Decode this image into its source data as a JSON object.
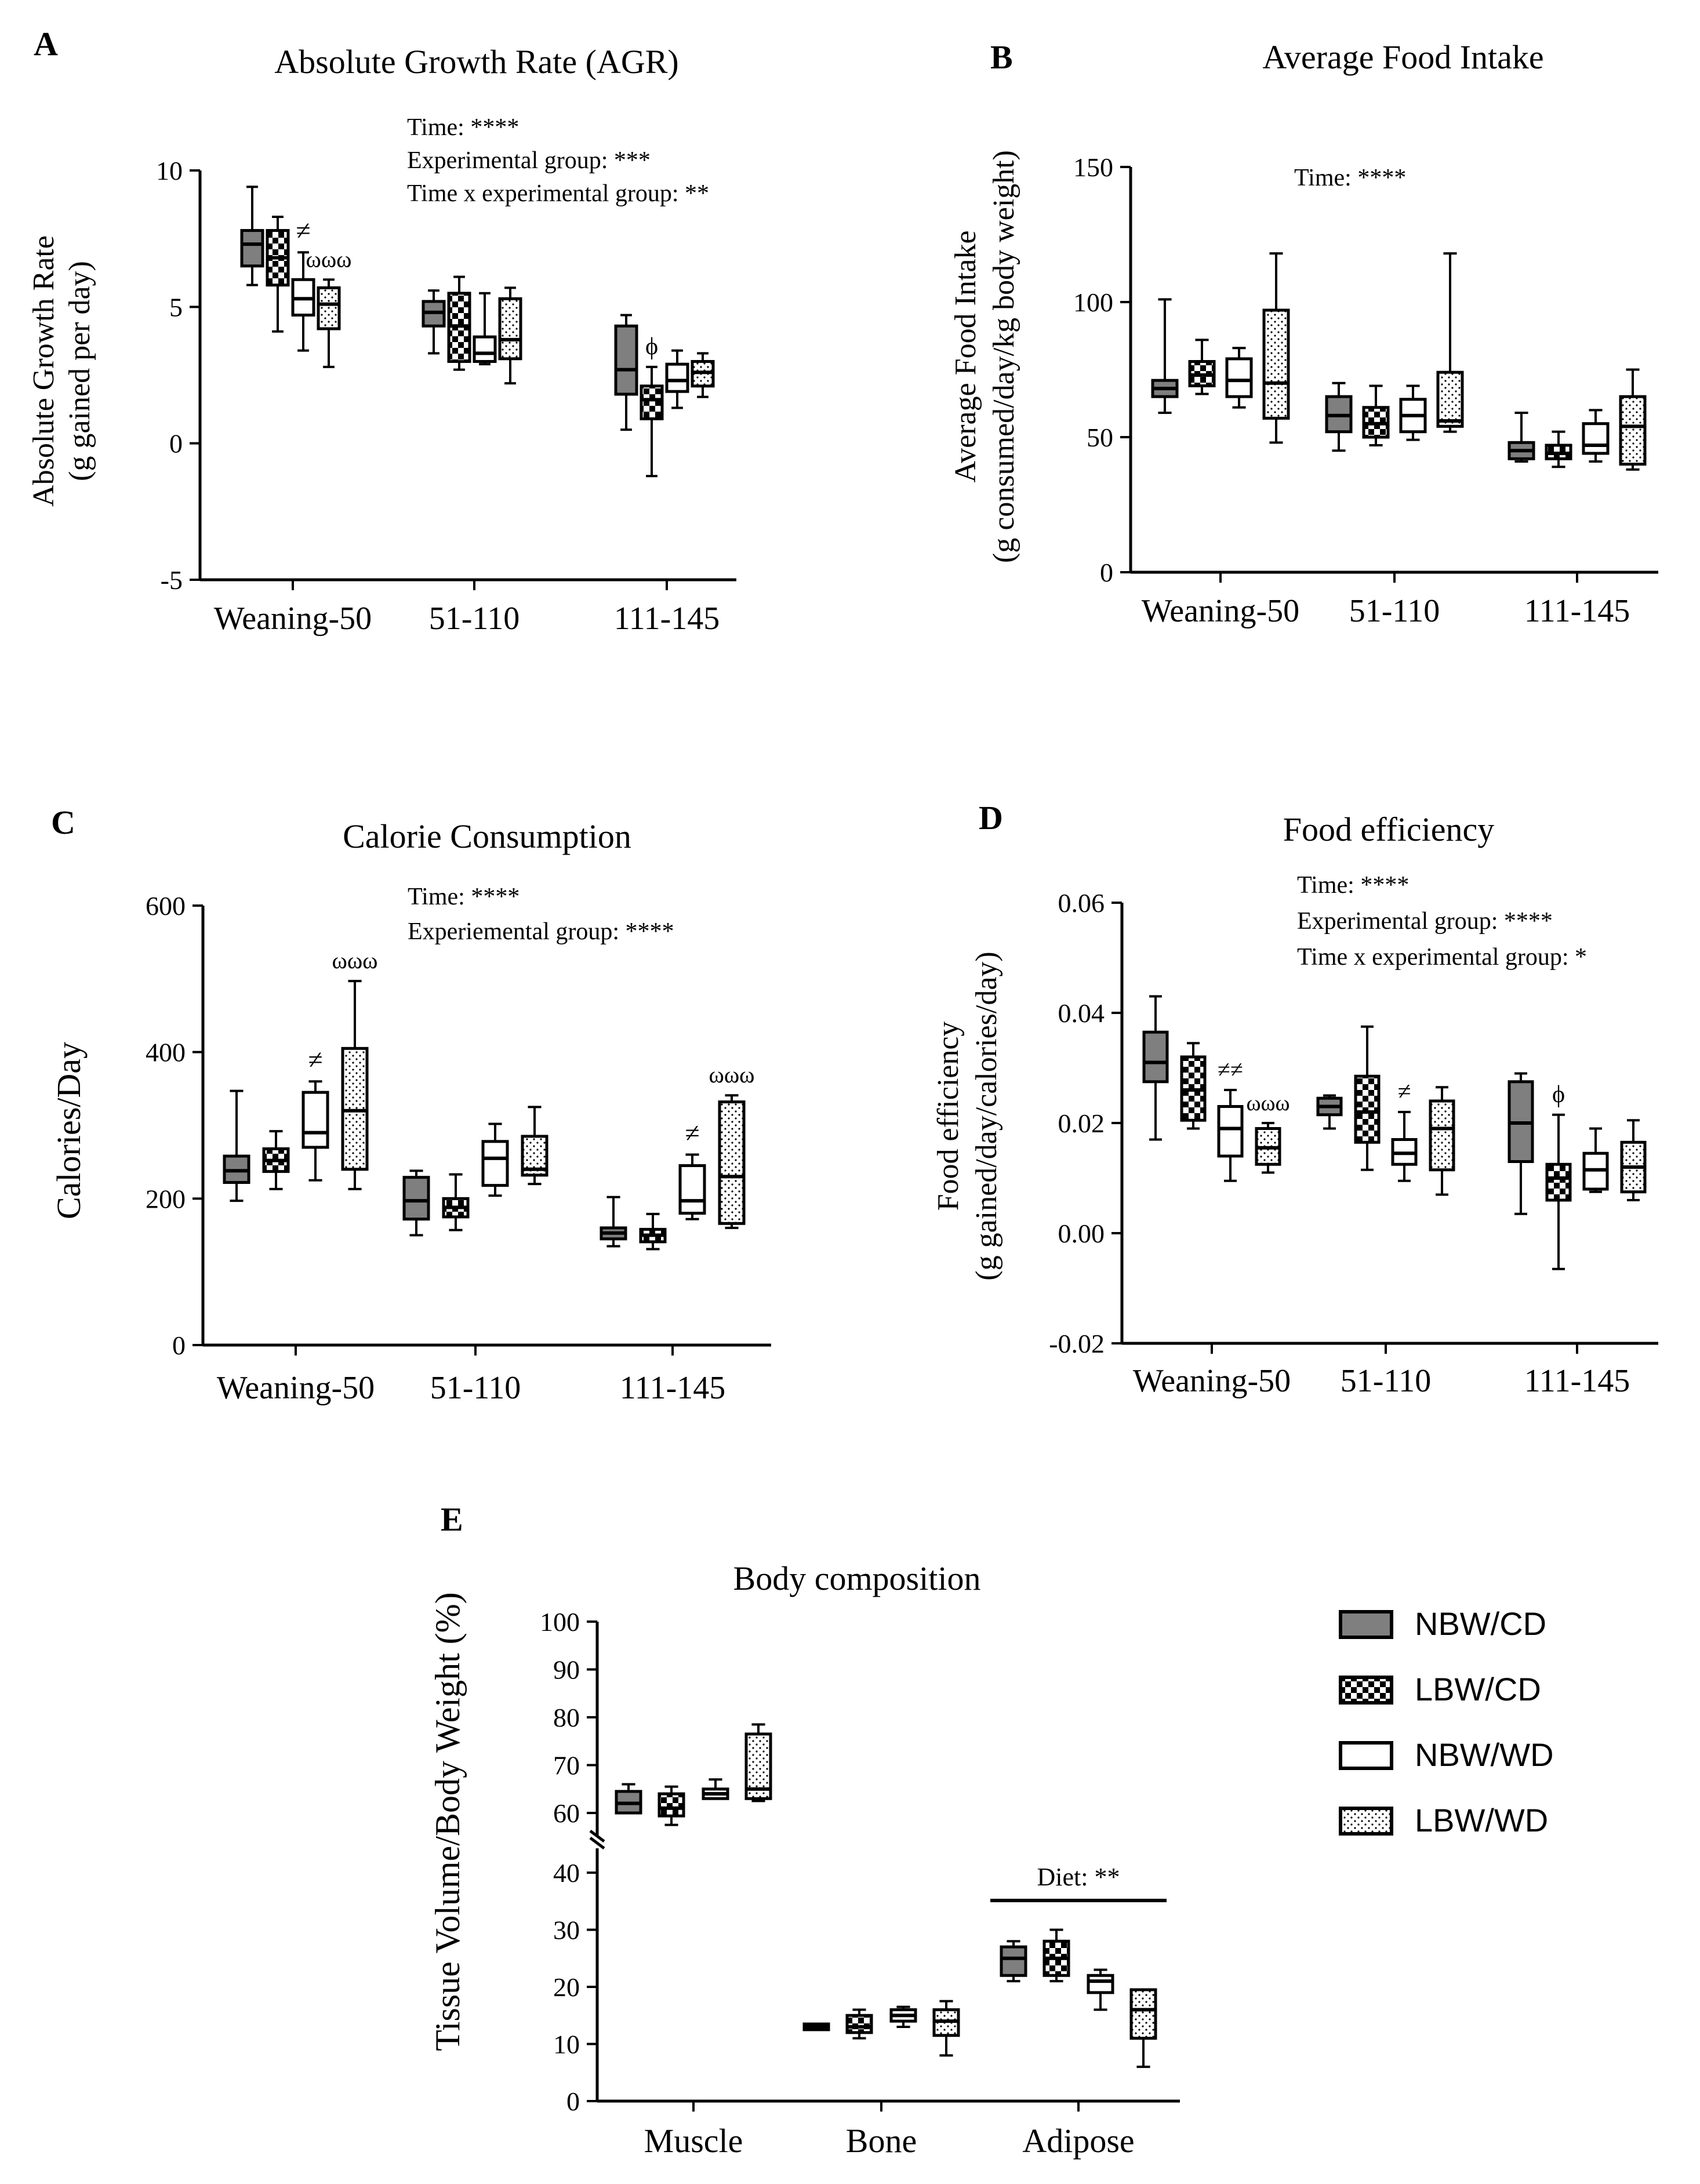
{
  "panels": [
    {
      "letter": "A",
      "title": "Absolute Growth Rate (AGR)",
      "ylabel_lines": [
        "Absolute Growth Rate",
        "(g gained per day)"
      ],
      "yticks": [
        "10",
        "5",
        "0",
        "-5"
      ],
      "categories": [
        "Weaning-50",
        "51-110",
        "111-145"
      ],
      "stats": [
        "Time: ****",
        "Experimental group: ***",
        "Time x experimental group: **"
      ],
      "annotations": [
        {
          "text": "≠",
          "category": 0,
          "group": 2
        },
        {
          "text": "ωωω",
          "category": 0,
          "group": 3
        },
        {
          "text": "ϕ",
          "category": 2,
          "group": 1
        }
      ]
    },
    {
      "letter": "B",
      "title": "Average Food Intake",
      "ylabel_lines": [
        "Average Food Intake",
        "(g consumed/day/kg body weight)"
      ],
      "yticks": [
        "150",
        "100",
        "50",
        "0"
      ],
      "categories": [
        "Weaning-50",
        "51-110",
        "111-145"
      ],
      "stats": [
        "Time: ****"
      ],
      "annotations": []
    },
    {
      "letter": "C",
      "title": "Calorie Consumption",
      "ylabel_lines": [
        "Calories/Day"
      ],
      "yticks": [
        "600",
        "400",
        "200",
        "0"
      ],
      "categories": [
        "Weaning-50",
        "51-110",
        "111-145"
      ],
      "stats": [
        "Time: ****",
        "Experiemental group: ****"
      ],
      "annotations": [
        {
          "text": "≠",
          "category": 0,
          "group": 2
        },
        {
          "text": "ωωω",
          "category": 0,
          "group": 3
        },
        {
          "text": "≠",
          "category": 2,
          "group": 2
        },
        {
          "text": "ωωω",
          "category": 2,
          "group": 3
        }
      ]
    },
    {
      "letter": "D",
      "title": "Food efficiency",
      "ylabel_lines": [
        "Food efficiency",
        "(g gained/day/calories/day)"
      ],
      "yticks": [
        "0.06",
        "0.04",
        "0.02",
        "0.00",
        "-0.02"
      ],
      "categories": [
        "Weaning-50",
        "51-110",
        "111-145"
      ],
      "stats": [
        "Time: ****",
        "Experimental group: ****",
        "Time x experimental group: *"
      ],
      "annotations": [
        {
          "text": "≠≠",
          "category": 0,
          "group": 2
        },
        {
          "text": "ωωω",
          "category": 0,
          "group": 3
        },
        {
          "text": "≠",
          "category": 1,
          "group": 2
        },
        {
          "text": "ϕ",
          "category": 2,
          "group": 1
        }
      ]
    },
    {
      "letter": "E",
      "title": "Body composition",
      "ylabel_lines": [
        "Tissue Volume/Body Weight (%)"
      ],
      "yticks": [
        "100",
        "90",
        "80",
        "70",
        "60",
        "40",
        "30",
        "20",
        "10",
        "0"
      ],
      "categories": [
        "Muscle",
        "Bone",
        "Adipose"
      ],
      "stats": [],
      "significance_bar": {
        "label": "Diet: **",
        "category": 2
      },
      "annotations": []
    }
  ],
  "legend": [
    {
      "label": "NBW/CD",
      "fill": "gray"
    },
    {
      "label": "LBW/CD",
      "fill": "checker"
    },
    {
      "label": "NBW/WD",
      "fill": "white"
    },
    {
      "label": "LBW/WD",
      "fill": "dots"
    }
  ],
  "colors": {
    "nbw_cd": "#7f7f7f",
    "lbw_cd": "#000000",
    "nbw_wd": "#ffffff",
    "lbw_wd": "#ffffff",
    "axis": "#000000"
  },
  "chart_data": [
    {
      "type": "box",
      "panel": "A",
      "title": "Absolute Growth Rate (AGR)",
      "ylabel": "Absolute Growth Rate (g gained per day)",
      "ylim": [
        -5,
        10
      ],
      "categories": [
        "Weaning-50",
        "51-110",
        "111-145"
      ],
      "series": [
        {
          "name": "NBW/CD",
          "boxes": [
            [
              5.8,
              6.5,
              7.3,
              7.8,
              9.4
            ],
            [
              3.3,
              4.3,
              4.8,
              5.2,
              5.6
            ],
            [
              0.5,
              1.8,
              2.7,
              4.3,
              4.7
            ]
          ]
        },
        {
          "name": "LBW/CD",
          "boxes": [
            [
              4.1,
              5.8,
              6.8,
              7.8,
              8.3
            ],
            [
              2.7,
              3.0,
              4.3,
              5.5,
              6.1
            ]
          ],
          "extra": true,
          "boxes_more": [
            [
              -1.2,
              0.9,
              1.6,
              2.1,
              2.8
            ]
          ]
        },
        {
          "name": "NBW/WD",
          "boxes": [
            [
              3.4,
              4.7,
              5.3,
              6.0,
              7.0
            ],
            [
              2.9,
              3.0,
              3.3,
              3.9,
              5.5
            ],
            [
              1.3,
              1.9,
              2.3,
              2.9,
              3.4
            ]
          ]
        },
        {
          "name": "LBW/WD",
          "boxes": [
            [
              2.8,
              4.2,
              5.1,
              5.7,
              6.0
            ],
            [
              2.2,
              3.1,
              3.8,
              5.3,
              5.7
            ],
            [
              1.7,
              2.1,
              2.6,
              3.0,
              3.3
            ]
          ]
        }
      ]
    },
    {
      "type": "box",
      "panel": "B",
      "title": "Average Food Intake",
      "ylabel": "Average Food Intake (g consumed/day/kg body weight)",
      "ylim": [
        0,
        150
      ],
      "categories": [
        "Weaning-50",
        "51-110",
        "111-145"
      ],
      "series": [
        {
          "name": "NBW/CD",
          "boxes": [
            [
              59,
              65,
              68,
              71,
              101
            ],
            [
              45,
              52,
              58,
              65,
              70
            ],
            [
              41,
              42,
              45,
              48,
              59
            ]
          ]
        },
        {
          "name": "LBW/CD",
          "boxes": [
            [
              66,
              69,
              73,
              78,
              86
            ],
            [
              47,
              50,
              55,
              61,
              69
            ],
            [
              39,
              42,
              44,
              47,
              52
            ]
          ]
        },
        {
          "name": "NBW/WD",
          "boxes": [
            [
              61,
              65,
              71,
              79,
              83
            ],
            [
              49,
              52,
              58,
              64,
              69
            ],
            [
              41,
              44,
              47,
              55,
              60
            ]
          ]
        },
        {
          "name": "LBW/WD",
          "boxes": [
            [
              48,
              57,
              70,
              97,
              118
            ],
            [
              52,
              54,
              56,
              74,
              118
            ],
            [
              38,
              40,
              54,
              65,
              75
            ]
          ]
        }
      ]
    },
    {
      "type": "box",
      "panel": "C",
      "title": "Calorie Consumption",
      "ylabel": "Calories/Day",
      "ylim": [
        0,
        600
      ],
      "categories": [
        "Weaning-50",
        "51-110",
        "111-145"
      ],
      "series": [
        {
          "name": "NBW/CD",
          "boxes": [
            [
              197,
              222,
              238,
              258,
              347
            ],
            [
              150,
              172,
              197,
              229,
              238
            ],
            [
              135,
              145,
              153,
              160,
              202
            ]
          ]
        },
        {
          "name": "LBW/CD",
          "boxes": [
            [
              213,
              237,
              252,
              268,
              292
            ],
            [
              157,
              175,
              188,
              200,
              233
            ],
            [
              131,
              141,
              150,
              158,
              179
            ]
          ]
        },
        {
          "name": "NBW/WD",
          "boxes": [
            [
              225,
              270,
              290,
              345,
              360
            ],
            [
              204,
              218,
              255,
              278,
              302
            ],
            [
              172,
              180,
              197,
              245,
              260
            ]
          ]
        },
        {
          "name": "LBW/WD",
          "boxes": [
            [
              213,
              240,
              320,
              405,
              497
            ],
            [
              220,
              232,
              240,
              285,
              325
            ],
            [
              160,
              166,
              230,
              332,
              341
            ]
          ]
        }
      ]
    },
    {
      "type": "box",
      "panel": "D",
      "title": "Food efficiency",
      "ylabel": "Food efficiency (g gained/day/calories/day)",
      "ylim": [
        -0.02,
        0.06
      ],
      "categories": [
        "Weaning-50",
        "51-110",
        "111-145"
      ],
      "series": [
        {
          "name": "NBW/CD",
          "boxes": [
            [
              0.017,
              0.0275,
              0.031,
              0.0365,
              0.043
            ],
            [
              0.019,
              0.0215,
              0.023,
              0.0245,
              0.025
            ],
            [
              0.0035,
              0.013,
              0.02,
              0.0275,
              0.029
            ]
          ]
        },
        {
          "name": "LBW/CD",
          "boxes": [
            [
              0.019,
              0.0205,
              0.026,
              0.032,
              0.0345
            ],
            [
              0.0115,
              0.0165,
              0.022,
              0.0285,
              0.0375
            ],
            [
              -0.0065,
              0.006,
              0.01,
              0.0125,
              0.0215
            ]
          ]
        },
        {
          "name": "NBW/WD",
          "boxes": [
            [
              0.0095,
              0.014,
              0.019,
              0.023,
              0.026
            ],
            [
              0.0095,
              0.0125,
              0.0145,
              0.017,
              0.022
            ],
            [
              0.0075,
              0.008,
              0.0115,
              0.0145,
              0.019
            ]
          ]
        },
        {
          "name": "LBW/WD",
          "boxes": [
            [
              0.011,
              0.0125,
              0.0155,
              0.019,
              0.02
            ],
            [
              0.007,
              0.0115,
              0.019,
              0.024,
              0.0265
            ],
            [
              0.006,
              0.0075,
              0.012,
              0.0165,
              0.0205
            ]
          ]
        }
      ]
    },
    {
      "type": "box",
      "panel": "E",
      "title": "Body composition",
      "ylabel": "Tissue Volume/Body Weight (%)",
      "ylim": [
        0,
        100
      ],
      "axis_break": [
        40,
        60
      ],
      "categories": [
        "Muscle",
        "Bone",
        "Adipose"
      ],
      "significance": "Diet: **",
      "series": [
        {
          "name": "NBW/CD",
          "boxes": [
            [
              60,
              60,
              62,
              64.5,
              66
            ],
            [
              12.5,
              12.5,
              13,
              13.5,
              13.5
            ],
            [
              21,
              22,
              25,
              27,
              28
            ]
          ]
        },
        {
          "name": "LBW/CD",
          "boxes": [
            [
              56,
              59,
              61,
              64,
              65.5
            ],
            [
              11,
              12,
              13,
              15,
              16
            ],
            [
              21,
              22,
              25,
              28,
              30
            ]
          ]
        },
        {
          "name": "NBW/WD",
          "boxes": [
            [
              63,
              63,
              64,
              65,
              67
            ],
            [
              13,
              14,
              15,
              16,
              16.5
            ],
            [
              16,
              19,
              21,
              22,
              23
            ]
          ]
        },
        {
          "name": "LBW/WD",
          "boxes": [
            [
              62.5,
              63,
              65,
              76.5,
              78.5
            ],
            [
              8,
              11.5,
              14,
              16,
              17.5
            ],
            [
              6,
              11,
              16,
              19.5,
              19.5
            ]
          ]
        }
      ]
    }
  ]
}
